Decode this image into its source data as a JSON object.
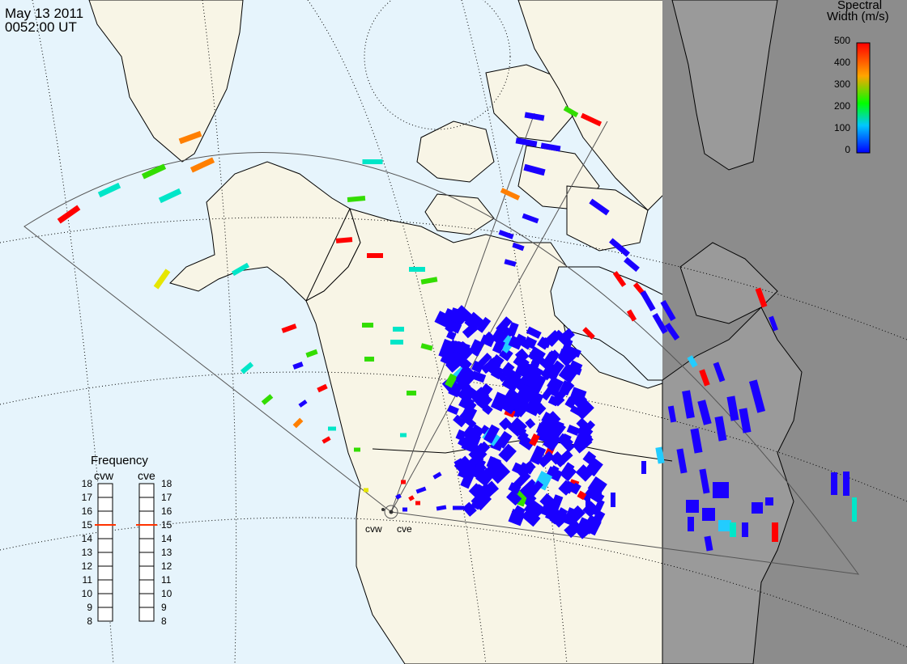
{
  "header": {
    "date": "May 13 2011",
    "time": "0052:00 UT"
  },
  "colorbar": {
    "title_line1": "Spectral",
    "title_line2": "Width (m/s)",
    "ticks": [
      "500",
      "400",
      "300",
      "200",
      "100",
      "0"
    ],
    "range": [
      0,
      500
    ],
    "colors": [
      "#0000ff",
      "#00c8ff",
      "#00ff00",
      "#ffa500",
      "#ff0000"
    ]
  },
  "frequency_panel": {
    "title": "Frequency",
    "radars": [
      "cvw",
      "cve"
    ],
    "ticks": [
      "18",
      "17",
      "16",
      "15",
      "14",
      "13",
      "12",
      "11",
      "10",
      "9",
      "8"
    ],
    "cvw_value": 15,
    "cve_value": 15,
    "marker_color": "#ff3300"
  },
  "radar_sites": [
    "cvw",
    "cve"
  ],
  "map_colors": {
    "ocean": "#e6f4fc",
    "land": "#f8f5e6",
    "night": "#8c8c8c",
    "night_land": "#9a9a9a"
  }
}
